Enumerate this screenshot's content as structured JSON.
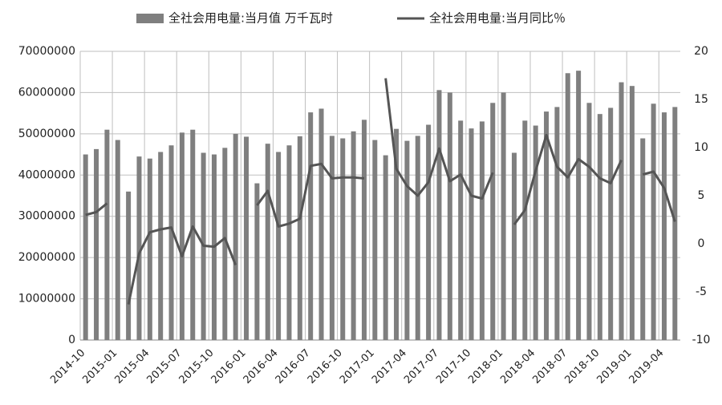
{
  "chart_data": {
    "type": "bar-line",
    "series": [
      {
        "name": "全社会用电量:当月值 万千瓦时",
        "type": "bar",
        "color": "#7f7f7f",
        "values": [
          45000000,
          46300000,
          51000000,
          48500000,
          36000000,
          44500000,
          44000000,
          45600000,
          47200000,
          50300000,
          51000000,
          45400000,
          45000000,
          46600000,
          50000000,
          49300000,
          38000000,
          47600000,
          45600000,
          47200000,
          49400000,
          55200000,
          56100000,
          49500000,
          48900000,
          50600000,
          53400000,
          48500000,
          44800000,
          51200000,
          48300000,
          49500000,
          52200000,
          60600000,
          60000000,
          53200000,
          51300000,
          53000000,
          57500000,
          60000000,
          45400000,
          53200000,
          52000000,
          55400000,
          56500000,
          64700000,
          65300000,
          57500000,
          54800000,
          56300000,
          62500000,
          61600000,
          48900000,
          57300000,
          55200000,
          56500000
        ]
      },
      {
        "name": "全社会用电量:当月同比％",
        "type": "line",
        "axis": "y2",
        "color": "#555555",
        "values": [
          3,
          3.3,
          4.2,
          null,
          -6.3,
          -1,
          1.2,
          1.5,
          1.7,
          -1.3,
          1.8,
          -0.2,
          -0.3,
          0.6,
          -2.2,
          null,
          4,
          5.5,
          1.8,
          2.1,
          2.6,
          8.1,
          8.3,
          6.8,
          6.9,
          6.9,
          6.8,
          null,
          17.2,
          7.8,
          6,
          5,
          6.4,
          9.9,
          6.5,
          7.2,
          5,
          4.7,
          7.4,
          null,
          2,
          3.5,
          7.6,
          11.3,
          8,
          6.9,
          8.8,
          8,
          6.8,
          6.3,
          8.7,
          null,
          7.2,
          7.5,
          5.8,
          2.3
        ]
      }
    ],
    "categories": [
      "2014-10",
      null,
      null,
      "2015-01",
      null,
      null,
      "2015-04",
      null,
      null,
      "2015-07",
      null,
      null,
      "2015-10",
      null,
      null,
      "2016-01",
      null,
      null,
      "2016-04",
      null,
      null,
      "2016-07",
      null,
      null,
      "2016-10",
      null,
      null,
      "2017-01",
      null,
      null,
      "2017-04",
      null,
      null,
      "2017-07",
      null,
      null,
      "2017-10",
      null,
      null,
      "2018-01",
      null,
      null,
      "2018-04",
      null,
      null,
      "2018-07",
      null,
      null,
      "2018-10",
      null,
      null,
      "2019-01",
      null,
      null,
      "2019-04",
      null
    ],
    "ylim": [
      0,
      70000000
    ],
    "yticks": [
      0,
      10000000,
      20000000,
      30000000,
      40000000,
      50000000,
      60000000,
      70000000
    ],
    "y2lim": [
      -10,
      20
    ],
    "y2ticks": [
      -10,
      -5,
      0,
      5,
      10,
      15,
      20
    ],
    "grid": true,
    "legend": "top"
  }
}
